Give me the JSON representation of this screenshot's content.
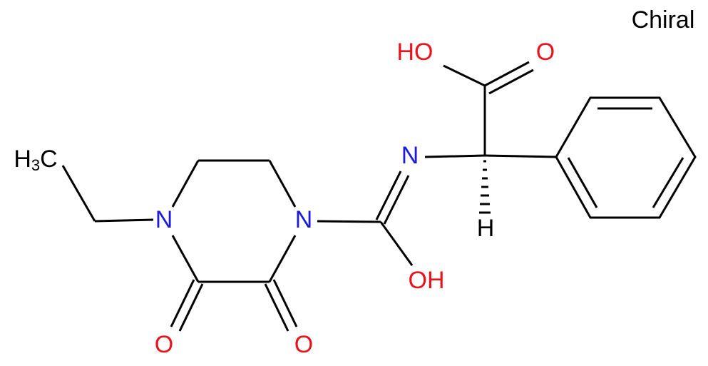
{
  "note": "Chiral",
  "atoms": [
    {
      "label": "HO"
    },
    {
      "label": "O"
    },
    {
      "label": "N"
    },
    {
      "label": "H"
    },
    {
      "label": [
        "H",
        "3",
        "C"
      ]
    },
    {
      "label": "N"
    },
    {
      "label": "N"
    },
    {
      "label": "OH"
    },
    {
      "label": "O"
    },
    {
      "label": "O"
    }
  ]
}
